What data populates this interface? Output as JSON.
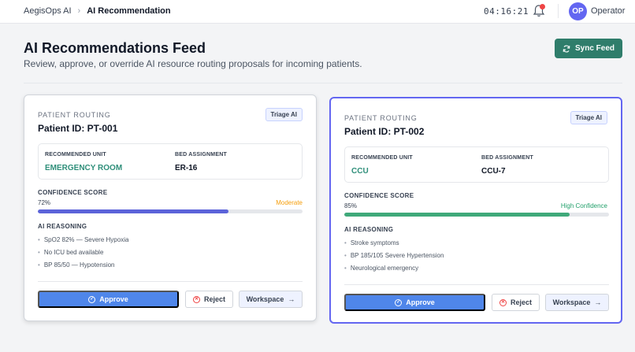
{
  "breadcrumb": {
    "root": "AegisOps AI",
    "current": "AI Recommendation"
  },
  "header": {
    "clock": "04:16:21",
    "avatar_initials": "OP",
    "user_name": "Operator"
  },
  "page": {
    "title": "AI Recommendations Feed",
    "subtitle": "Review, approve, or override AI resource routing proposals for incoming patients.",
    "sync_label": "Sync Feed"
  },
  "labels": {
    "kicker": "PATIENT ROUTING",
    "recommended_unit": "RECOMMENDED UNIT",
    "bed_assignment": "BED ASSIGNMENT",
    "confidence_score": "CONFIDENCE SCORE",
    "ai_reasoning": "AI REASONING",
    "approve": "Approve",
    "reject": "Reject",
    "workspace": "Workspace"
  },
  "cards": [
    {
      "patient_id": "Patient ID: PT-001",
      "badge": "Triage AI",
      "unit": "EMERGENCY ROOM",
      "bed": "ER-16",
      "confidence": 72,
      "confidence_text": "72%",
      "confidence_label": "Moderate",
      "confidence_color": "#f59e0b",
      "bar_color": "#5b63d9",
      "reasons": [
        "SpO2 82% — Severe Hypoxia",
        "No ICU bed available",
        "BP 85/50 — Hypotension"
      ]
    },
    {
      "patient_id": "Patient ID: PT-002",
      "badge": "Triage AI",
      "unit": "CCU",
      "bed": "CCU-7",
      "confidence": 85,
      "confidence_text": "85%",
      "confidence_label": "High Confidence",
      "confidence_color": "#22a06b",
      "bar_color": "#3fa97a",
      "reasons": [
        "Stroke symptoms",
        "BP 185/105 Severe Hypertension",
        "Neurological emergency"
      ]
    }
  ],
  "colors": {
    "accent": "#6366f1",
    "primary_button": "#4f86ea",
    "sync_button": "#2f7d6b",
    "unit_text": "#2f8f7a"
  }
}
